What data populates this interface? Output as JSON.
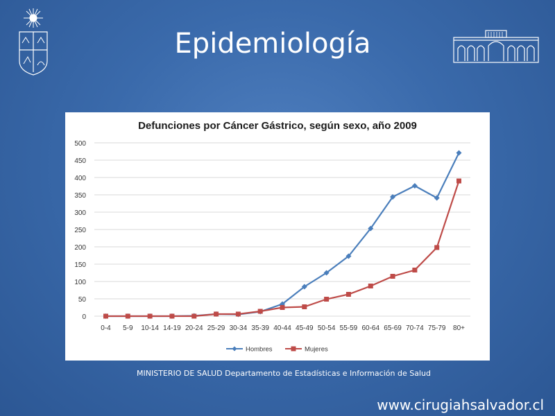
{
  "slide": {
    "title": "Epidemiología",
    "source_note": "MINISTERIO DE SALUD Departamento de Estadísticas e Información de Salud",
    "footer_url": "www.cirugiahsalvador.cl"
  },
  "colors": {
    "background": "#3a6aab",
    "hombres": "#4a7ebb",
    "mujeres": "#be4b48",
    "grid": "#d9d9d9"
  },
  "logos": {
    "left": "university-crest-icon",
    "right": "building-facade-icon"
  },
  "chart_data": {
    "type": "line",
    "title": "Defunciones por Cáncer Gástrico, según sexo, año 2009",
    "xlabel": "",
    "ylabel": "",
    "ylim": [
      0,
      500
    ],
    "yticks": [
      0,
      50,
      100,
      150,
      200,
      250,
      300,
      350,
      400,
      450,
      500
    ],
    "grid": true,
    "legend_position": "bottom",
    "categories": [
      "0-4",
      "5-9",
      "10-14",
      "14-19",
      "20-24",
      "25-29",
      "30-34",
      "35-39",
      "40-44",
      "45-49",
      "50-54",
      "55-59",
      "60-64",
      "65-69",
      "70-74",
      "75-79",
      "80+"
    ],
    "series": [
      {
        "name": "Hombres",
        "marker": "diamond",
        "color": "#4a7ebb",
        "values": [
          0,
          0,
          0,
          0,
          1,
          6,
          5,
          13,
          35,
          85,
          125,
          173,
          253,
          344,
          376,
          341,
          471
        ]
      },
      {
        "name": "Mujeres",
        "marker": "square",
        "color": "#be4b48",
        "values": [
          0,
          0,
          0,
          0,
          0,
          6,
          6,
          14,
          25,
          27,
          49,
          63,
          87,
          115,
          133,
          198,
          390
        ]
      }
    ]
  }
}
